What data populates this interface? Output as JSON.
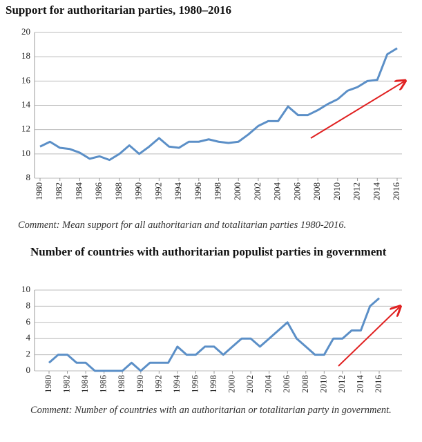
{
  "chart_data": [
    {
      "type": "line",
      "title": "Support for authoritarian parties, 1980–2016",
      "annotation": "Comment: Mean support for all authoritarian and totalitarian parties 1980-2016.",
      "x": [
        1980,
        1981,
        1982,
        1983,
        1984,
        1985,
        1986,
        1987,
        1988,
        1989,
        1990,
        1991,
        1992,
        1993,
        1994,
        1995,
        1996,
        1997,
        1998,
        1999,
        2000,
        2001,
        2002,
        2003,
        2004,
        2005,
        2006,
        2007,
        2008,
        2009,
        2010,
        2011,
        2012,
        2013,
        2014,
        2015,
        2016
      ],
      "values": [
        10.6,
        11.0,
        10.5,
        10.4,
        10.1,
        9.6,
        9.8,
        9.5,
        10.0,
        10.7,
        10.0,
        10.6,
        11.3,
        10.6,
        10.5,
        11.0,
        11.0,
        11.2,
        11.0,
        10.9,
        11.0,
        11.6,
        12.3,
        12.7,
        12.7,
        13.9,
        13.2,
        13.2,
        13.6,
        14.1,
        14.5,
        15.2,
        15.5,
        16.0,
        16.1,
        18.2,
        18.7
      ],
      "color": "#5b8fc7",
      "xlim": [
        1980,
        2016
      ],
      "xticks": [
        1980,
        1982,
        1984,
        1986,
        1988,
        1990,
        1992,
        1994,
        1996,
        1998,
        2000,
        2002,
        2004,
        2006,
        2008,
        2010,
        2012,
        2014,
        2016
      ],
      "ylim": [
        8,
        20
      ],
      "yticks": [
        8,
        10,
        12,
        14,
        16,
        18,
        20
      ],
      "grid": true
    },
    {
      "type": "line",
      "title": "Number of countries with authoritarian populist parties in government",
      "annotation": "Comment: Number of countries with an authoritarian or totalitarian party in government.",
      "x": [
        1980,
        1981,
        1982,
        1983,
        1984,
        1985,
        1986,
        1987,
        1988,
        1989,
        1990,
        1991,
        1992,
        1993,
        1994,
        1995,
        1996,
        1997,
        1998,
        1999,
        2000,
        2001,
        2002,
        2003,
        2004,
        2005,
        2006,
        2007,
        2008,
        2009,
        2010,
        2011,
        2012,
        2013,
        2014,
        2015,
        2016
      ],
      "values": [
        1,
        2,
        2,
        1,
        1,
        0,
        0,
        0,
        0,
        1,
        0,
        1,
        1,
        1,
        3,
        2,
        2,
        3,
        3,
        2,
        3,
        4,
        4,
        3,
        4,
        5,
        6,
        4,
        3,
        2,
        2,
        4,
        4,
        5,
        5,
        8,
        9
      ],
      "color": "#5b8fc7",
      "xlim": [
        1980,
        2016
      ],
      "xticks": [
        1980,
        1982,
        1984,
        1986,
        1988,
        1990,
        1992,
        1994,
        1996,
        1998,
        2000,
        2002,
        2004,
        2006,
        2008,
        2010,
        2012,
        2014,
        2016
      ],
      "ylim": [
        0,
        10
      ],
      "yticks": [
        0,
        2,
        4,
        6,
        8,
        10
      ],
      "grid": true
    }
  ]
}
